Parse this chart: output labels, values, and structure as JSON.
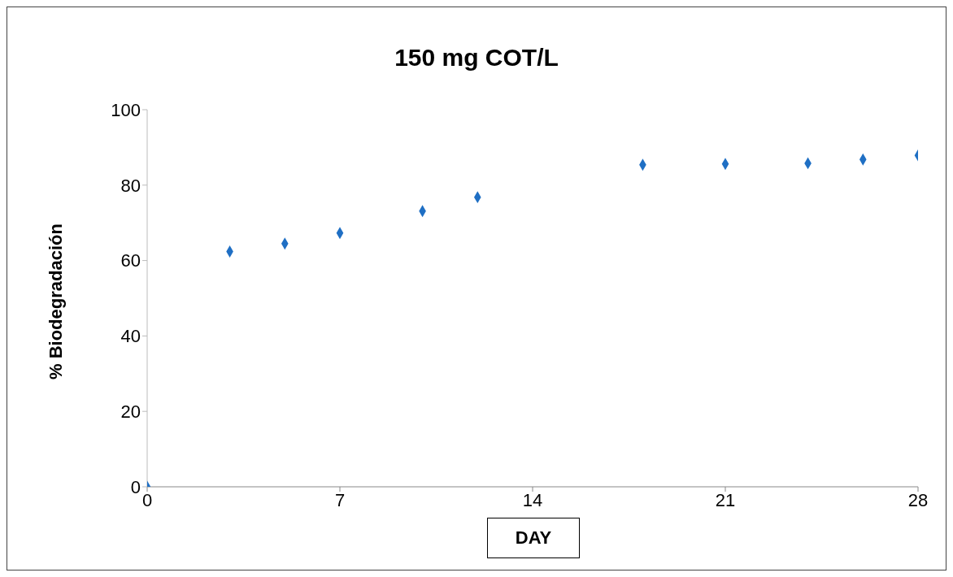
{
  "chart_data": {
    "type": "scatter",
    "title": "150 mg COT/L",
    "xlabel": "DAY",
    "ylabel": "% Biodegradación",
    "x": [
      0,
      3,
      5,
      7,
      10,
      12,
      18,
      21,
      24,
      26,
      28
    ],
    "series": [
      {
        "color": "#1f6fc4",
        "values": [
          0,
          62.4,
          64.5,
          67.3,
          73.1,
          76.8,
          85.4,
          85.6,
          85.8,
          86.8,
          87.9
        ]
      }
    ],
    "xlim": [
      0,
      28
    ],
    "xticks": [
      0,
      7,
      14,
      21,
      28
    ],
    "ylim": [
      0,
      100
    ],
    "yticks": [
      0,
      20,
      40,
      60,
      80,
      100
    ],
    "grid": false,
    "legend": false,
    "marker": "diamond"
  }
}
